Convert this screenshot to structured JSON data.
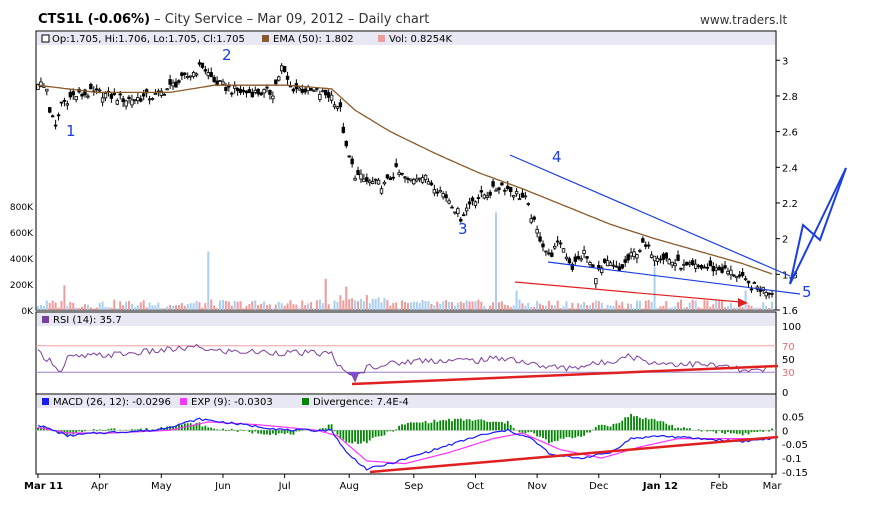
{
  "header": {
    "symbol": "CTS1L (-0.06%)",
    "description": " – City Service – Mar 09, 2012 – Daily chart",
    "site": "www.traders.lt"
  },
  "legend": {
    "ohlc": "Op:1.705, Hi:1.706, Lo:1.705, Cl:1.705",
    "ema": "EMA (50): 1.802",
    "vol": "Vol: 0.8254K",
    "rsi": "RSI (14): 35.7",
    "macd": "MACD (26, 12): -0.0296",
    "exp": "EXP (9): -0.0303",
    "div": "Divergence: 7.4E-4"
  },
  "annotations": [
    "1",
    "2",
    "3",
    "4",
    "5"
  ],
  "colors": {
    "panel_bg": "#ffffff",
    "header_bg": "#e8e8f4",
    "border": "#000000",
    "candle": "#000000",
    "ema": "#8b5a2b",
    "vol_up": "#a8cef0",
    "vol_down": "#f09a9a",
    "rsi": "#7b3f9e",
    "rsi_fill": "#6633cc",
    "macd": "#1a1aff",
    "exp": "#ff33ff",
    "div": "#008800",
    "blue_ann": "#1a3fe0",
    "red_ann": "#e02020"
  },
  "chart_data": {
    "type": "candlestick",
    "x_labels": [
      "Mar 11",
      "Apr",
      "May",
      "Jun",
      "Jul",
      "Aug",
      "Sep",
      "Oct",
      "Nov",
      "Dec",
      "Jan 12",
      "Feb",
      "Mar"
    ],
    "price_axis": {
      "ticks": [
        1.6,
        1.8,
        2,
        2.2,
        2.4,
        2.6,
        2.8,
        3
      ],
      "range": [
        1.6,
        3.08
      ]
    },
    "volume_axis": {
      "ticks": [
        "0K",
        "200K",
        "400K",
        "600K",
        "800K"
      ],
      "range": [
        0,
        1000
      ]
    },
    "rsi_axis": {
      "ticks": [
        0,
        30,
        50,
        70,
        100
      ],
      "range": [
        0,
        100
      ],
      "levels": [
        30,
        70
      ]
    },
    "macd_axis": {
      "ticks": [
        0.05,
        0,
        -0.05,
        -0.1,
        -0.15
      ],
      "range": [
        -0.15,
        0.08
      ]
    },
    "price_keypoints": [
      [
        0,
        2.88
      ],
      [
        3,
        2.84
      ],
      [
        4,
        2.72
      ],
      [
        6,
        2.62
      ],
      [
        8,
        2.76
      ],
      [
        12,
        2.8
      ],
      [
        20,
        2.82
      ],
      [
        30,
        2.78
      ],
      [
        40,
        2.8
      ],
      [
        48,
        2.88
      ],
      [
        52,
        2.92
      ],
      [
        56,
        2.97
      ],
      [
        60,
        2.88
      ],
      [
        65,
        2.84
      ],
      [
        70,
        2.82
      ],
      [
        80,
        2.82
      ],
      [
        83,
        2.96
      ],
      [
        86,
        2.85
      ],
      [
        95,
        2.82
      ],
      [
        100,
        2.8
      ],
      [
        103,
        2.72
      ],
      [
        105,
        2.5
      ],
      [
        108,
        2.36
      ],
      [
        112,
        2.32
      ],
      [
        118,
        2.3
      ],
      [
        122,
        2.38
      ],
      [
        126,
        2.32
      ],
      [
        130,
        2.36
      ],
      [
        135,
        2.3
      ],
      [
        140,
        2.22
      ],
      [
        144,
        2.12
      ],
      [
        148,
        2.22
      ],
      [
        154,
        2.26
      ],
      [
        158,
        2.3
      ],
      [
        162,
        2.26
      ],
      [
        166,
        2.22
      ],
      [
        170,
        2.04
      ],
      [
        174,
        1.9
      ],
      [
        178,
        1.98
      ],
      [
        182,
        1.84
      ],
      [
        186,
        1.92
      ],
      [
        190,
        1.8
      ],
      [
        194,
        1.86
      ],
      [
        198,
        1.82
      ],
      [
        202,
        1.9
      ],
      [
        206,
        1.96
      ],
      [
        210,
        1.92
      ],
      [
        215,
        1.88
      ],
      [
        220,
        1.84
      ],
      [
        226,
        1.84
      ],
      [
        232,
        1.83
      ],
      [
        238,
        1.8
      ],
      [
        242,
        1.74
      ],
      [
        246,
        1.72
      ],
      [
        250,
        1.705
      ]
    ],
    "ema50_keypoints": [
      [
        0,
        2.86
      ],
      [
        20,
        2.82
      ],
      [
        45,
        2.82
      ],
      [
        60,
        2.86
      ],
      [
        85,
        2.86
      ],
      [
        100,
        2.84
      ],
      [
        108,
        2.72
      ],
      [
        120,
        2.6
      ],
      [
        135,
        2.48
      ],
      [
        150,
        2.37
      ],
      [
        165,
        2.28
      ],
      [
        180,
        2.18
      ],
      [
        195,
        2.08
      ],
      [
        210,
        2.0
      ],
      [
        225,
        1.93
      ],
      [
        240,
        1.86
      ],
      [
        250,
        1.802
      ]
    ],
    "volume_spikes": [
      [
        9,
        190
      ],
      [
        58,
        450
      ],
      [
        98,
        240
      ],
      [
        105,
        180
      ],
      [
        156,
        750
      ],
      [
        163,
        150
      ],
      [
        210,
        360
      ],
      [
        241,
        150
      ]
    ],
    "rsi_keypoints": [
      [
        0,
        60
      ],
      [
        5,
        45
      ],
      [
        8,
        30
      ],
      [
        10,
        52
      ],
      [
        30,
        58
      ],
      [
        55,
        68
      ],
      [
        60,
        62
      ],
      [
        80,
        60
      ],
      [
        100,
        58
      ],
      [
        104,
        30
      ],
      [
        108,
        20
      ],
      [
        112,
        38
      ],
      [
        130,
        48
      ],
      [
        150,
        48
      ],
      [
        160,
        52
      ],
      [
        170,
        40
      ],
      [
        180,
        36
      ],
      [
        195,
        46
      ],
      [
        200,
        56
      ],
      [
        210,
        44
      ],
      [
        225,
        42
      ],
      [
        235,
        38
      ],
      [
        242,
        30
      ],
      [
        250,
        35.7
      ]
    ],
    "macd_keypoints": [
      [
        0,
        0.02
      ],
      [
        10,
        -0.02
      ],
      [
        20,
        -0.01
      ],
      [
        40,
        0.0
      ],
      [
        55,
        0.04
      ],
      [
        70,
        0.02
      ],
      [
        85,
        0.0
      ],
      [
        100,
        0.0
      ],
      [
        105,
        -0.08
      ],
      [
        112,
        -0.14
      ],
      [
        120,
        -0.12
      ],
      [
        135,
        -0.07
      ],
      [
        150,
        -0.02
      ],
      [
        160,
        0.0
      ],
      [
        168,
        -0.03
      ],
      [
        175,
        -0.09
      ],
      [
        185,
        -0.1
      ],
      [
        195,
        -0.08
      ],
      [
        202,
        -0.03
      ],
      [
        212,
        -0.02
      ],
      [
        225,
        -0.03
      ],
      [
        240,
        -0.04
      ],
      [
        250,
        -0.0296
      ]
    ],
    "exp_keypoints": [
      [
        0,
        0.01
      ],
      [
        10,
        -0.01
      ],
      [
        25,
        -0.01
      ],
      [
        45,
        0.0
      ],
      [
        58,
        0.03
      ],
      [
        75,
        0.02
      ],
      [
        95,
        0.0
      ],
      [
        102,
        -0.02
      ],
      [
        112,
        -0.11
      ],
      [
        125,
        -0.12
      ],
      [
        140,
        -0.08
      ],
      [
        155,
        -0.03
      ],
      [
        165,
        -0.01
      ],
      [
        178,
        -0.07
      ],
      [
        192,
        -0.1
      ],
      [
        205,
        -0.06
      ],
      [
        218,
        -0.03
      ],
      [
        235,
        -0.03
      ],
      [
        250,
        -0.0303
      ]
    ]
  }
}
